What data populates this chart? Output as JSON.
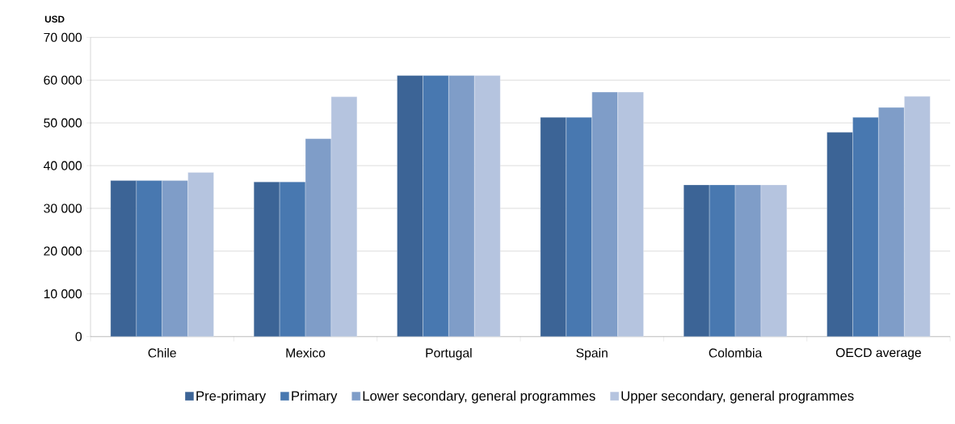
{
  "chart_data": {
    "type": "bar",
    "ylabel": "USD",
    "categories": [
      "Chile",
      "Mexico",
      "Portugal",
      "Spain",
      "Colombia",
      "OECD average"
    ],
    "series": [
      {
        "name": "Pre-primary",
        "color": "#3c6496",
        "values": [
          36500,
          36200,
          61100,
          51300,
          35500,
          47800
        ]
      },
      {
        "name": "Primary",
        "color": "#4878b0",
        "values": [
          36500,
          36200,
          61100,
          51300,
          35500,
          51300
        ]
      },
      {
        "name": "Lower secondary, general programmes",
        "color": "#7f9dc8",
        "values": [
          36500,
          46300,
          61100,
          57200,
          35500,
          53600
        ]
      },
      {
        "name": "Upper secondary, general programmes",
        "color": "#b5c4df",
        "values": [
          38400,
          56100,
          61100,
          57200,
          35500,
          56200
        ]
      }
    ],
    "ylim": [
      0,
      70000
    ],
    "yticks": [
      {
        "value": 0,
        "label": "0"
      },
      {
        "value": 10000,
        "label": "10 000"
      },
      {
        "value": 20000,
        "label": "20 000"
      },
      {
        "value": 30000,
        "label": "30 000"
      },
      {
        "value": 40000,
        "label": "40 000"
      },
      {
        "value": 50000,
        "label": "50 000"
      },
      {
        "value": 60000,
        "label": "60 000"
      },
      {
        "value": 70000,
        "label": "70 000"
      }
    ],
    "grid": "y",
    "legend": "bottom"
  }
}
